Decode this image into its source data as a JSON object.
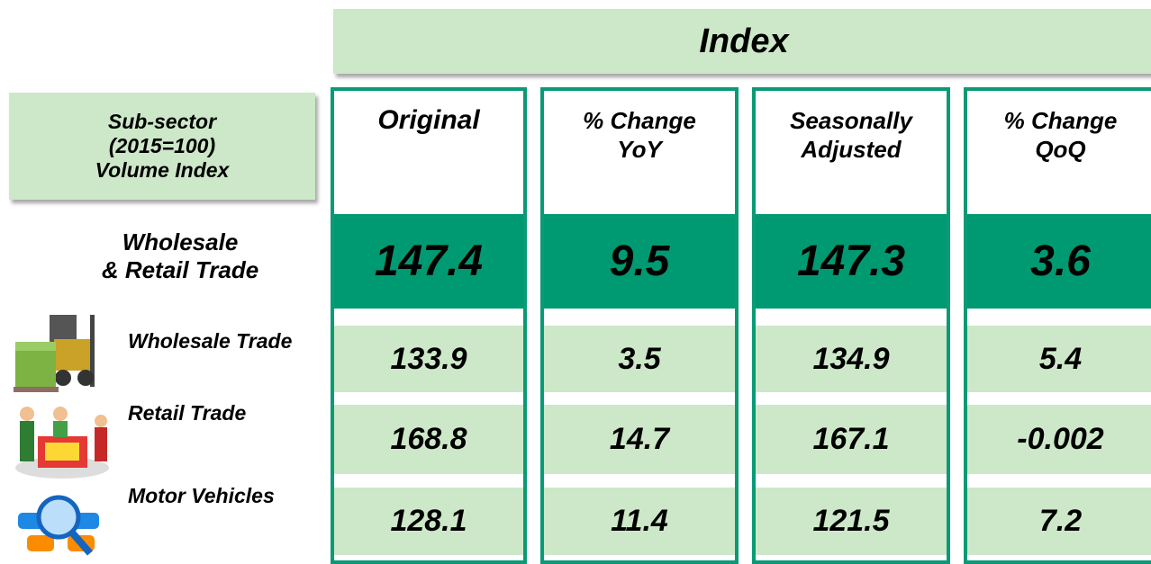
{
  "header": {
    "title": "Index"
  },
  "table": {
    "corner_label": "Sub-sector\n(2015=100)\nVolume Index",
    "columns": [
      "Original",
      "% Change\nYoY",
      "Seasonally\nAdjusted",
      "% Change\nQoQ"
    ],
    "rows": [
      {
        "label": "Wholesale\n& Retail Trade",
        "values": [
          "147.4",
          "9.5",
          "147.3",
          "3.6"
        ]
      },
      {
        "label": "Wholesale Trade",
        "values": [
          "133.9",
          "3.5",
          "134.9",
          "5.4"
        ]
      },
      {
        "label": "Retail Trade",
        "values": [
          "168.8",
          "14.7",
          "167.1",
          "-0.002"
        ]
      },
      {
        "label": "Motor Vehicles",
        "values": [
          "128.1",
          "11.4",
          "121.5",
          "7.2"
        ]
      }
    ]
  }
}
